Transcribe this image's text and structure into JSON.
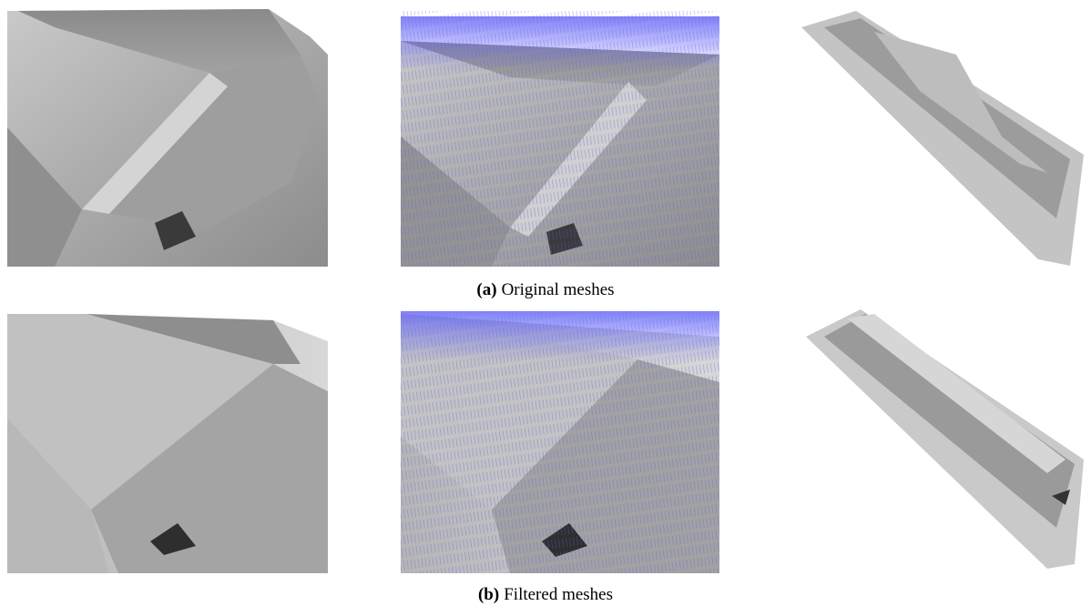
{
  "figure": {
    "panels": [
      {
        "label": "(a)",
        "caption": "Original meshes"
      },
      {
        "label": "(b)",
        "caption": "Filtered meshes"
      }
    ]
  }
}
